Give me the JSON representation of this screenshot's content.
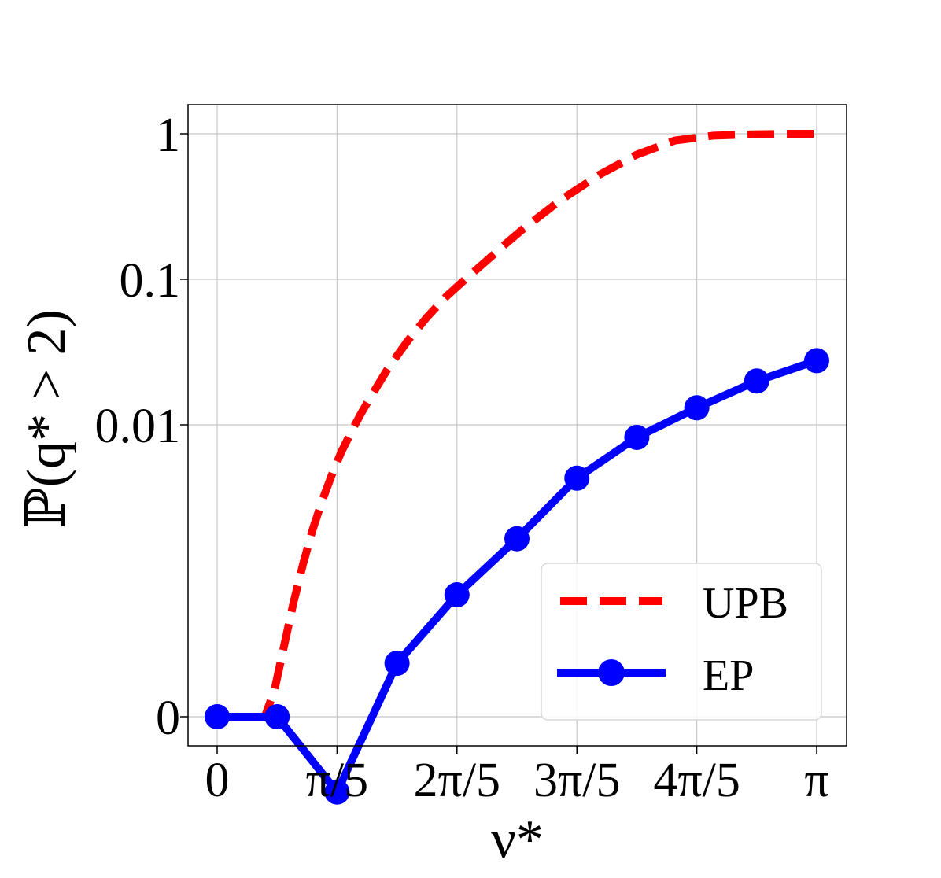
{
  "chart_data": {
    "type": "line",
    "title": "",
    "xlabel": "ν*",
    "ylabel": "ℙ(q* > 2)",
    "x_ticks": [
      {
        "value": 0.0,
        "label": "0"
      },
      {
        "value": 0.6283,
        "label": "π/5"
      },
      {
        "value": 1.2566,
        "label": "2π/5"
      },
      {
        "value": 1.885,
        "label": "3π/5"
      },
      {
        "value": 2.5133,
        "label": "4π/5"
      },
      {
        "value": 3.1416,
        "label": "π"
      }
    ],
    "y_scale": "symlog",
    "y_ticks": [
      {
        "value": 0,
        "label": "0"
      },
      {
        "value": 0.01,
        "label": "0.01"
      },
      {
        "value": 0.1,
        "label": "0.1"
      },
      {
        "value": 1,
        "label": "1"
      }
    ],
    "xlim": [
      -0.15,
      3.3
    ],
    "grid": true,
    "legend_position": "lower-right",
    "series": [
      {
        "name": "UPB",
        "style": "dashed",
        "color": "#ff0000",
        "x": [
          0.2,
          0.25,
          0.3,
          0.35,
          0.4,
          0.45,
          0.5,
          0.55,
          0.6,
          0.65,
          0.7,
          0.75,
          0.8,
          0.9,
          1.0,
          1.1,
          1.2,
          1.3,
          1.4,
          1.5,
          1.6,
          1.8,
          2.0,
          2.2,
          2.4,
          2.6,
          2.8,
          3.0,
          3.1416
        ],
        "y": [
          0.0,
          0.0,
          0.00015,
          0.0003,
          0.0006,
          0.0011,
          0.0019,
          0.003,
          0.0045,
          0.0065,
          0.0088,
          0.0117,
          0.0152,
          0.025,
          0.038,
          0.055,
          0.076,
          0.1,
          0.13,
          0.17,
          0.22,
          0.35,
          0.52,
          0.72,
          0.9,
          0.97,
          0.99,
          1.0,
          1.0
        ]
      },
      {
        "name": "EP",
        "style": "solid-marker",
        "color": "#0000ff",
        "x": [
          0.0,
          0.3142,
          0.6283,
          0.9425,
          1.2566,
          1.5708,
          1.885,
          2.1991,
          2.5133,
          2.8274,
          3.1416
        ],
        "y": [
          0.0,
          0.0,
          3e-05,
          0.00023,
          0.00068,
          0.00165,
          0.0043,
          0.0082,
          0.0131,
          0.02,
          0.0276
        ]
      }
    ]
  }
}
